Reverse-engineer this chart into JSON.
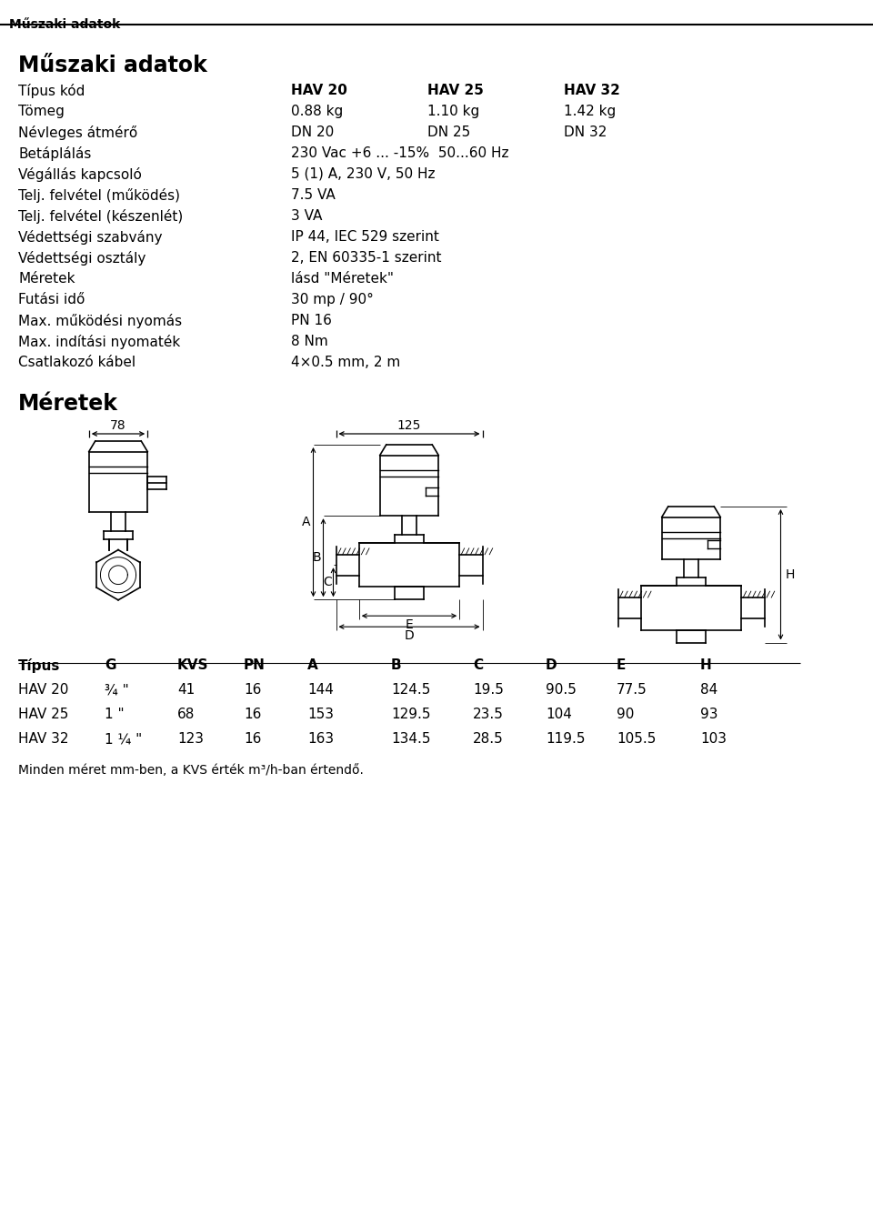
{
  "header_text": "Műszaki adatok",
  "title_text": "Műszaki adatok",
  "rows": [
    {
      "label": "Típus kód",
      "values": [
        "HAV 20",
        "HAV 25",
        "HAV 32"
      ]
    },
    {
      "label": "Tömeg",
      "values": [
        "0.88 kg",
        "1.10 kg",
        "1.42 kg"
      ]
    },
    {
      "label": "Névleges átmérő",
      "values": [
        "DN 20",
        "DN 25",
        "DN 32"
      ]
    },
    {
      "label": "Betáplálás",
      "values": [
        "230 Vac +6 ... -15%  50...60 Hz",
        "",
        ""
      ]
    },
    {
      "label": "Végállás kapcsoló",
      "values": [
        "5 (1) A, 230 V, 50 Hz",
        "",
        ""
      ]
    },
    {
      "label": "Telj. felvétel (működés)",
      "values": [
        "7.5 VA",
        "",
        ""
      ]
    },
    {
      "label": "Telj. felvétel (készenlét)",
      "values": [
        "3 VA",
        "",
        ""
      ]
    },
    {
      "label": "Védettségi szabvány",
      "values": [
        "IP 44, IEC 529 szerint",
        "",
        ""
      ]
    },
    {
      "label": "Védettségi osztály",
      "values": [
        "2, EN 60335-1 szerint",
        "",
        ""
      ]
    },
    {
      "label": "Méretek",
      "values": [
        "lásd \"Méretek\"",
        "",
        ""
      ]
    },
    {
      "label": "Futási idő",
      "values": [
        "30 mp / 90°",
        "",
        ""
      ]
    },
    {
      "label": "Max. működési nyomás",
      "values": [
        "PN 16",
        "",
        ""
      ]
    },
    {
      "label": "Max. indítási nyomaték",
      "values": [
        "8 Nm",
        "",
        ""
      ]
    },
    {
      "label": "Csatlakozó kábel",
      "values": [
        "4×0.5 mm, 2 m",
        "",
        ""
      ]
    }
  ],
  "meretek_title": "Méretek",
  "table_headers": [
    "Típus",
    "G",
    "KVS",
    "PN",
    "A",
    "B",
    "C",
    "D",
    "E",
    "H"
  ],
  "table_rows": [
    [
      "HAV 20",
      "¾ \"",
      "41",
      "16",
      "144",
      "124.5",
      "19.5",
      "90.5",
      "77.5",
      "84"
    ],
    [
      "HAV 25",
      "1 \"",
      "68",
      "16",
      "153",
      "129.5",
      "23.5",
      "104",
      "90",
      "93"
    ],
    [
      "HAV 32",
      "1 ¼ \"",
      "123",
      "16",
      "163",
      "134.5",
      "28.5",
      "119.5",
      "105.5",
      "103"
    ]
  ],
  "footer_text": "Minden méret mm-ben, a KVS érték m³/h-ban értendő.",
  "dim_78": "78",
  "dim_125": "125",
  "bg_color": "#ffffff",
  "text_color": "#000000"
}
